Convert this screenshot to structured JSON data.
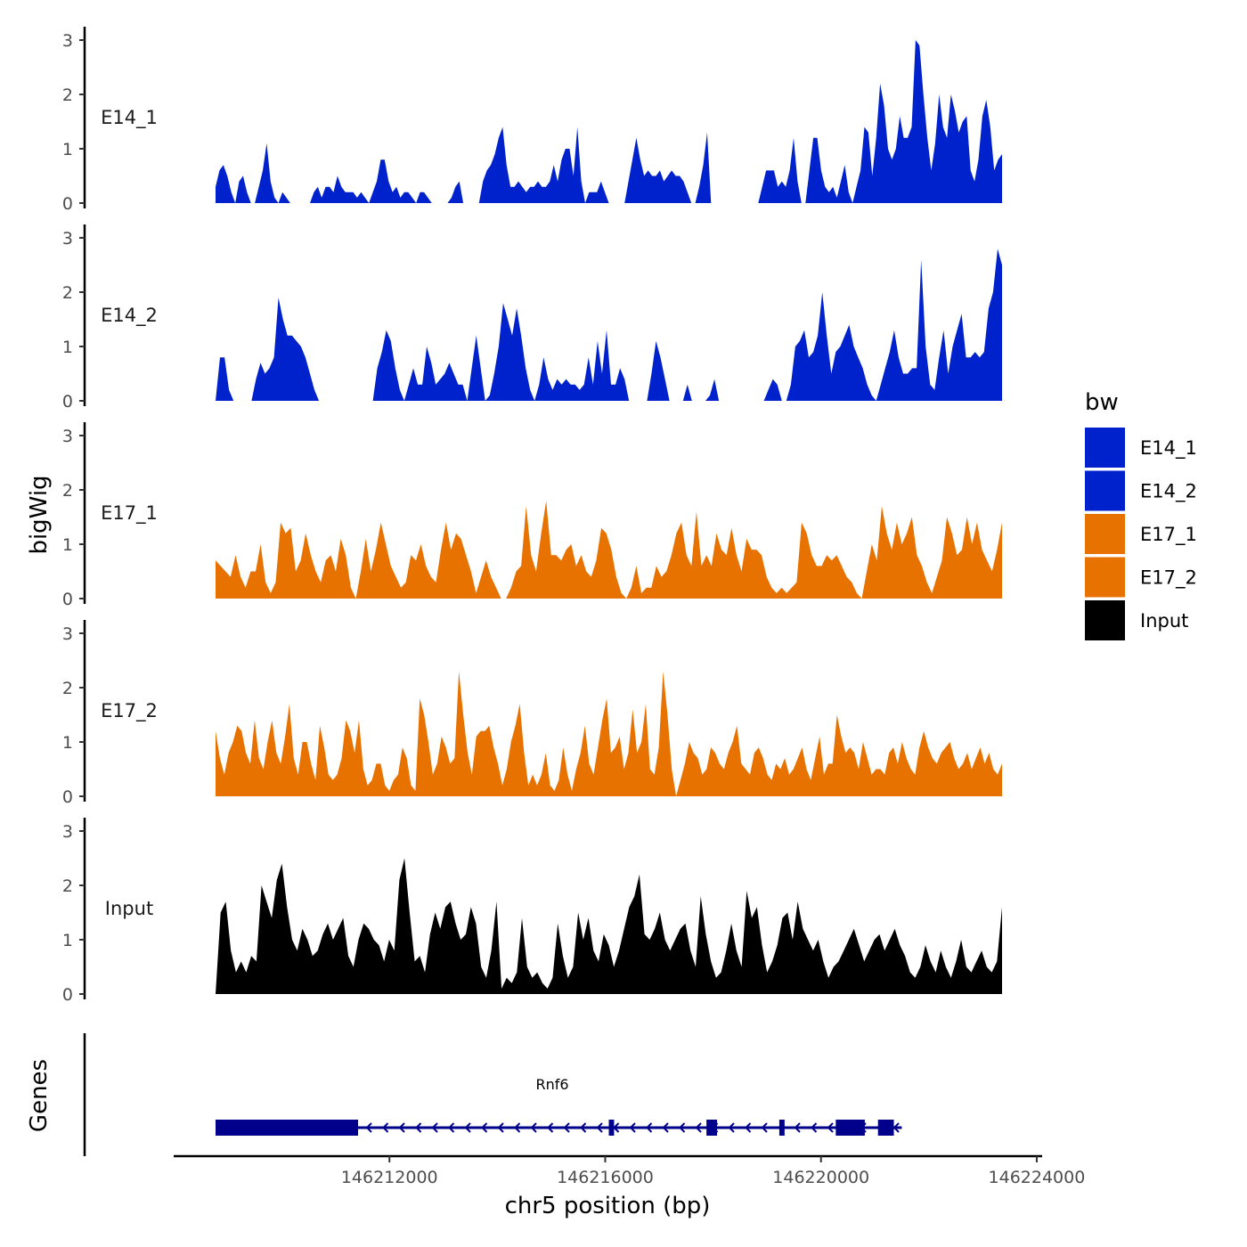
{
  "chart_data": {
    "type": "area",
    "ylabel": "bigWig",
    "genes_label": "Genes",
    "xlabel": "chr5 position (bp)",
    "x_range": [
      146208600,
      146223500
    ],
    "x_axis_domain": [
      146208000,
      146224100
    ],
    "x_ticks": [
      146212000,
      146216000,
      146220000,
      146224000
    ],
    "x_tick_labels": [
      "146212000",
      "146216000",
      "146220000",
      "146224000"
    ],
    "ylim": [
      0,
      3.2
    ],
    "y_ticks": [
      0,
      1,
      2,
      3
    ],
    "y_tick_labels": [
      "0",
      "1",
      "2",
      "3"
    ],
    "legend": {
      "title": "bw",
      "entries": [
        {
          "label": "E14_1",
          "color": "#0022CC"
        },
        {
          "label": "E14_2",
          "color": "#0022CC"
        },
        {
          "label": "E17_1",
          "color": "#E87200"
        },
        {
          "label": "E17_2",
          "color": "#E87200"
        },
        {
          "label": "Input",
          "color": "#000000"
        }
      ]
    },
    "series": [
      {
        "name": "E14_1",
        "color": "#0022CC",
        "values": [
          0.3,
          0.6,
          0.7,
          0.5,
          0.2,
          0,
          0.4,
          0.5,
          0.2,
          0,
          0,
          0.3,
          0.6,
          1.1,
          0.4,
          0.1,
          0,
          0.2,
          0.1,
          0,
          0,
          0,
          0,
          0,
          0,
          0.2,
          0.3,
          0.1,
          0.3,
          0.3,
          0.2,
          0.5,
          0.3,
          0.2,
          0.2,
          0.2,
          0.1,
          0.2,
          0.1,
          0,
          0.2,
          0.4,
          0.8,
          0.8,
          0.4,
          0.2,
          0.3,
          0.1,
          0.2,
          0.2,
          0.1,
          0,
          0.2,
          0.2,
          0.1,
          0,
          0,
          0,
          0,
          0,
          0.1,
          0.3,
          0.4,
          0,
          0,
          0,
          0,
          0,
          0.4,
          0.6,
          0.7,
          0.9,
          1.2,
          1.4,
          0.7,
          0.3,
          0.3,
          0.4,
          0.3,
          0.2,
          0.3,
          0.3,
          0.4,
          0.3,
          0.3,
          0.4,
          0.7,
          0.4,
          0.8,
          1.0,
          1.0,
          0.5,
          1.4,
          0.4,
          0,
          0.2,
          0.2,
          0.2,
          0.4,
          0.2,
          0,
          0,
          0,
          0,
          0,
          0.4,
          0.8,
          1.2,
          0.8,
          0.5,
          0.6,
          0.5,
          0.5,
          0.6,
          0.4,
          0.5,
          0.6,
          0.5,
          0.5,
          0.4,
          0.2,
          0,
          0,
          0.3,
          0.7,
          1.3,
          0,
          0,
          0,
          0,
          0,
          0,
          0,
          0,
          0,
          0,
          0,
          0,
          0,
          0.3,
          0.6,
          0.6,
          0.6,
          0.3,
          0.4,
          0.3,
          0.6,
          1.2,
          0.4,
          0,
          0,
          0.6,
          1.2,
          1.2,
          0.6,
          0.3,
          0.2,
          0.3,
          0.1,
          0.4,
          0.7,
          0.2,
          0,
          0.3,
          0.6,
          1.4,
          1.3,
          0.5,
          1.2,
          2.2,
          1.8,
          1.0,
          0.8,
          1.0,
          1.6,
          1.2,
          1.2,
          1.4,
          3.0,
          2.9,
          2.0,
          1.2,
          0.6,
          1.1,
          2.0,
          1.4,
          1.2,
          2.0,
          1.7,
          1.3,
          1.5,
          1.6,
          0.6,
          0.4,
          0.8,
          1.6,
          1.9,
          1.4,
          0.6,
          0.8,
          0.9
        ]
      },
      {
        "name": "E14_2",
        "color": "#0022CC",
        "values": [
          0,
          0.8,
          0.8,
          0.2,
          0,
          0,
          0,
          0,
          0,
          0.4,
          0.7,
          0.5,
          0.6,
          0.8,
          1.9,
          1.5,
          1.2,
          1.2,
          1.1,
          1.0,
          0.8,
          0.5,
          0.2,
          0,
          0,
          0,
          0,
          0,
          0,
          0,
          0,
          0,
          0,
          0,
          0,
          0,
          0.6,
          0.9,
          1.3,
          1.1,
          0.6,
          0.2,
          0,
          0.3,
          0.6,
          0.3,
          0.3,
          1.0,
          0.7,
          0.3,
          0.4,
          0.5,
          0.7,
          0.5,
          0.3,
          0.3,
          0,
          0.6,
          1.2,
          0.6,
          0,
          0.1,
          0.5,
          1.0,
          1.8,
          1.5,
          1.2,
          1.7,
          1.2,
          0.6,
          0.2,
          0,
          0.3,
          0.8,
          0.4,
          0.2,
          0.4,
          0.3,
          0.4,
          0.3,
          0.3,
          0.2,
          0.3,
          0.8,
          0.3,
          1.1,
          0.5,
          1.3,
          0.3,
          0.3,
          0.6,
          0.4,
          0,
          0,
          0,
          0,
          0,
          0.5,
          1.1,
          0.8,
          0.4,
          0,
          0,
          0,
          0,
          0.3,
          0,
          0,
          0,
          0,
          0.1,
          0.4,
          0,
          0,
          0,
          0,
          0,
          0,
          0,
          0,
          0,
          0,
          0,
          0.2,
          0.4,
          0.3,
          0,
          0,
          0.3,
          1.0,
          1.1,
          1.3,
          0.8,
          0.9,
          1.2,
          2.0,
          1.2,
          0.5,
          0.9,
          1.0,
          1.2,
          1.4,
          1.0,
          0.8,
          0.6,
          0.3,
          0.1,
          0,
          0.3,
          0.6,
          0.9,
          1.3,
          0.8,
          0.5,
          0.5,
          0.6,
          0.6,
          2.6,
          1.0,
          0.3,
          0.2,
          0.8,
          1.3,
          0.5,
          1.0,
          1.3,
          1.6,
          0.8,
          0.8,
          0.9,
          0.8,
          0.9,
          1.7,
          2.0,
          2.8,
          2.5
        ]
      },
      {
        "name": "E17_1",
        "color": "#E87200",
        "values": [
          0.7,
          0.6,
          0.5,
          0.4,
          0.8,
          0.4,
          0.2,
          0.5,
          0.5,
          1.0,
          0.3,
          0.1,
          0.3,
          1.4,
          1.2,
          1.3,
          0.5,
          0.7,
          1.2,
          0.8,
          0.5,
          0.3,
          0.7,
          0.8,
          0.5,
          1.1,
          0.8,
          0.2,
          0,
          0.5,
          1.1,
          0.5,
          0.9,
          1.4,
          1.0,
          0.6,
          0.4,
          0.2,
          0.3,
          0.8,
          0.7,
          1.0,
          0.6,
          0.4,
          0.3,
          0.9,
          1.4,
          0.9,
          1.2,
          1.1,
          0.8,
          0.5,
          0.1,
          0.4,
          0.7,
          0.4,
          0.2,
          0,
          0,
          0.2,
          0.5,
          0.6,
          1.7,
          0.8,
          0.5,
          1.2,
          1.8,
          0.8,
          0.8,
          0.7,
          0.9,
          1.0,
          0.6,
          0.8,
          0.5,
          0.4,
          0.7,
          1.3,
          1.2,
          0.9,
          0.4,
          0.1,
          0,
          0.2,
          0.6,
          0.1,
          0.2,
          0.2,
          0.6,
          0.4,
          0.5,
          0.8,
          1.2,
          1.4,
          0.8,
          0.6,
          1.6,
          0.6,
          0.8,
          0.6,
          1.2,
          0.9,
          0.8,
          1.3,
          0.8,
          0.5,
          1.1,
          0.9,
          0.9,
          0.8,
          0.4,
          0.2,
          0.1,
          0.2,
          0.1,
          0.2,
          0.3,
          1.4,
          1.2,
          0.8,
          0.6,
          0.6,
          0.8,
          0.7,
          0.8,
          0.6,
          0.4,
          0.3,
          0.1,
          0,
          0.5,
          1.0,
          0.7,
          1.7,
          1.2,
          0.9,
          1.4,
          1.0,
          1.2,
          1.5,
          0.8,
          0.6,
          0.3,
          0.1,
          0.4,
          0.7,
          1.5,
          1.2,
          0.8,
          0.9,
          1.5,
          1.0,
          1.4,
          0.9,
          0.7,
          0.5,
          0.9,
          1.4
        ]
      },
      {
        "name": "E17_2",
        "color": "#E87200",
        "values": [
          1.2,
          0.7,
          0.4,
          0.8,
          1.0,
          1.3,
          1.2,
          0.8,
          0.6,
          1.4,
          0.7,
          0.5,
          1.0,
          1.4,
          0.8,
          0.6,
          1.1,
          1.7,
          0.7,
          0.4,
          1.0,
          1.0,
          0.6,
          0.3,
          1.3,
          0.9,
          0.4,
          0.3,
          0.4,
          0.7,
          1.4,
          1.2,
          0.8,
          1.4,
          0.5,
          0.2,
          0.3,
          0.6,
          0.6,
          0.2,
          0.1,
          0.3,
          0.4,
          0.9,
          0.7,
          0.2,
          0.1,
          1.8,
          1.5,
          1.0,
          0.4,
          0.6,
          1.1,
          0.9,
          0.6,
          0.7,
          2.3,
          1.5,
          0.8,
          0.4,
          1.1,
          1.2,
          1.2,
          1.3,
          0.9,
          0.6,
          0.2,
          0.5,
          1.0,
          1.3,
          1.7,
          0.8,
          0.2,
          0.4,
          0.2,
          0.4,
          0.8,
          0.2,
          0.1,
          0.3,
          0.9,
          0.4,
          0.1,
          0.5,
          0.8,
          1.3,
          0.6,
          0.4,
          0.9,
          1.4,
          1.8,
          0.8,
          0.9,
          1.1,
          0.5,
          0.8,
          1.6,
          0.8,
          1.0,
          1.7,
          0.5,
          0.4,
          0.9,
          2.3,
          1.5,
          0.5,
          0,
          0.3,
          0.6,
          1.0,
          0.8,
          0.7,
          0.4,
          0.5,
          0.9,
          0.8,
          0.6,
          0.5,
          0.8,
          1.0,
          1.3,
          0.6,
          0.5,
          0.4,
          0.8,
          0.9,
          0.7,
          0.4,
          0.3,
          0.6,
          0.5,
          0.7,
          0.4,
          0.5,
          0.7,
          0.9,
          0.5,
          0.3,
          0.7,
          1.1,
          0.4,
          0.6,
          0.6,
          1.5,
          1.1,
          0.8,
          0.9,
          0.8,
          0.5,
          1.0,
          0.7,
          0.4,
          0.5,
          0.5,
          0.4,
          0.8,
          0.9,
          0.6,
          1.0,
          0.7,
          0.5,
          0.4,
          0.9,
          1.2,
          0.9,
          0.7,
          0.6,
          0.8,
          0.9,
          1.0,
          0.7,
          0.5,
          0.6,
          0.8,
          0.5,
          0.7,
          0.9,
          0.6,
          0.8,
          0.5,
          0.4,
          0.6
        ]
      },
      {
        "name": "Input",
        "color": "#000000",
        "values": [
          0,
          1.5,
          1.7,
          0.8,
          0.4,
          0.6,
          0.4,
          0.7,
          0.6,
          2.0,
          1.7,
          1.4,
          2.1,
          2.4,
          1.6,
          1.0,
          0.8,
          1.2,
          1.0,
          0.7,
          0.8,
          1.1,
          1.3,
          1.0,
          1.2,
          1.4,
          0.7,
          0.5,
          1.0,
          1.3,
          1.2,
          1.0,
          0.9,
          0.6,
          1.0,
          0.8,
          2.1,
          2.5,
          1.5,
          0.6,
          0.7,
          0.4,
          1.1,
          1.5,
          1.2,
          1.6,
          1.7,
          1.3,
          1.0,
          1.1,
          1.6,
          1.3,
          0.5,
          0.3,
          0.8,
          1.7,
          0.1,
          0.3,
          0.2,
          0.4,
          1.4,
          0.5,
          0.3,
          0.4,
          0.2,
          0.1,
          0.3,
          1.3,
          0.7,
          0.3,
          0.5,
          1.5,
          1.0,
          1.4,
          0.8,
          0.6,
          1.1,
          0.9,
          0.5,
          0.8,
          1.2,
          1.6,
          1.8,
          2.2,
          1.1,
          1.0,
          1.2,
          1.5,
          1.0,
          0.8,
          1.0,
          1.2,
          1.3,
          0.8,
          0.5,
          1.8,
          1.1,
          0.6,
          0.3,
          0.4,
          0.8,
          1.3,
          0.8,
          0.5,
          1.9,
          1.4,
          1.6,
          0.9,
          0.4,
          0.6,
          0.9,
          1.4,
          1.5,
          1.0,
          1.7,
          1.2,
          1.0,
          0.8,
          1.0,
          0.6,
          0.3,
          0.5,
          0.6,
          0.8,
          1.0,
          1.2,
          0.9,
          0.6,
          0.8,
          1.0,
          1.1,
          0.8,
          1.0,
          1.2,
          0.9,
          0.7,
          0.4,
          0.3,
          0.5,
          0.9,
          0.6,
          0.4,
          0.8,
          0.5,
          0.3,
          0.6,
          1.0,
          0.5,
          0.4,
          0.6,
          0.8,
          0.5,
          0.4,
          0.6,
          1.6
        ]
      }
    ],
    "gene": {
      "name": "Rnf6",
      "strand": "-",
      "start": 146208600,
      "end": 146221600,
      "exons": [
        [
          146208600,
          146211300
        ],
        [
          146216050,
          146216150
        ],
        [
          146217900,
          146218100
        ],
        [
          146219280,
          146219380
        ],
        [
          146220350,
          146220900
        ],
        [
          146221150,
          146221450
        ]
      ]
    }
  }
}
